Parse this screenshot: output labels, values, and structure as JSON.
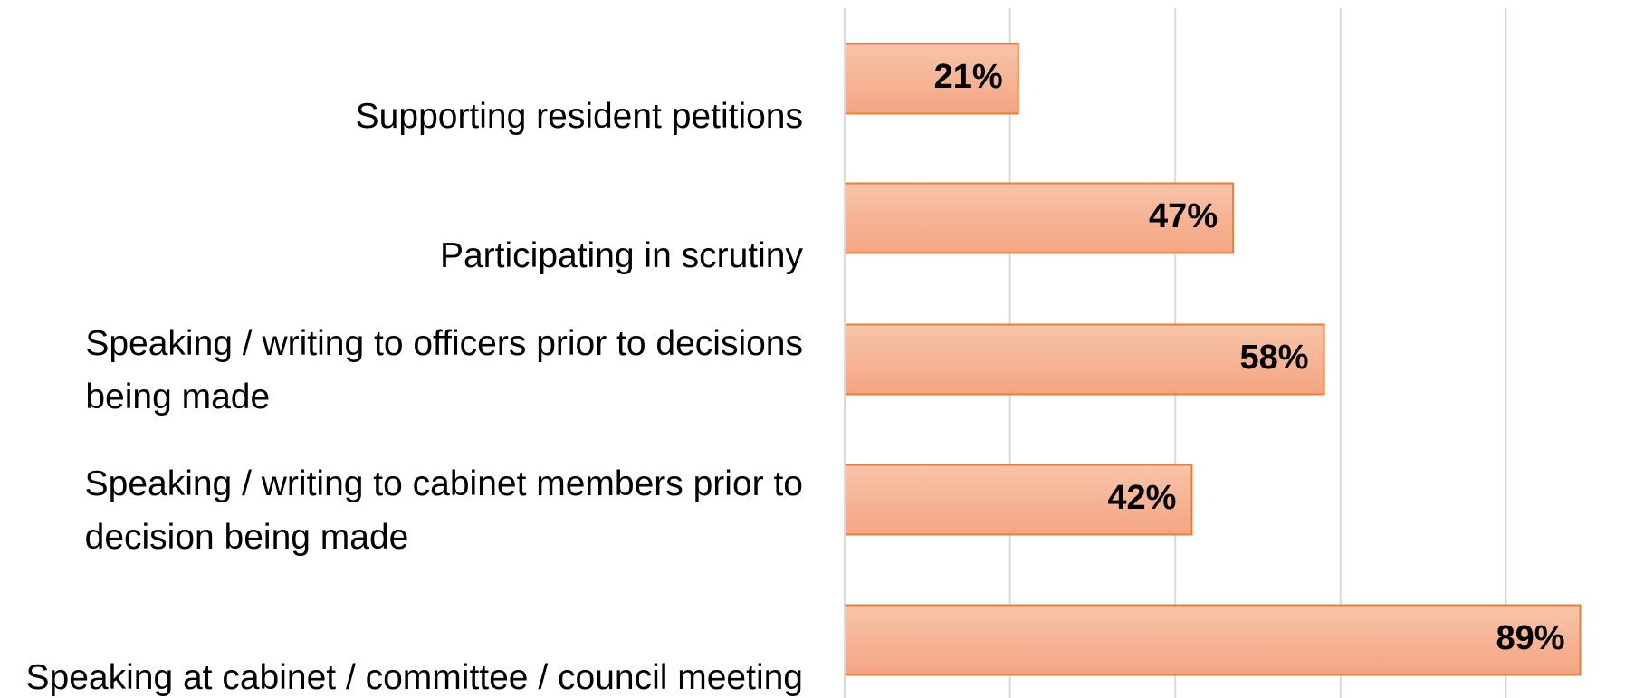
{
  "chart_data": {
    "type": "bar",
    "orientation": "horizontal",
    "categories": [
      "Supporting resident petitions",
      "Participating in scrutiny",
      "Speaking / writing to officers prior to decisions being made",
      "Speaking / writing to cabinet members prior to decision being made",
      "Speaking at cabinet / committee / council meeting"
    ],
    "values": [
      21,
      47,
      58,
      42,
      89
    ],
    "value_labels": [
      "21%",
      "47%",
      "58%",
      "42%",
      "89%"
    ],
    "color": "#f4a582",
    "xlim": [
      0,
      100
    ],
    "xticks": [
      0,
      20,
      40,
      60,
      80
    ],
    "grid": true
  }
}
